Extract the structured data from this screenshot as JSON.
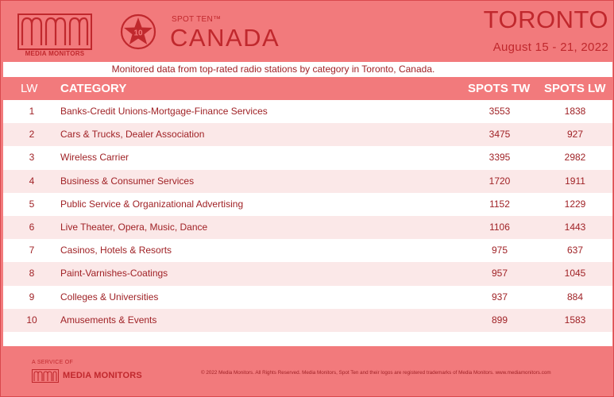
{
  "header": {
    "logo_text": "MEDIA MONITORS",
    "badge_number": "10",
    "brand_small": "SPOT TEN™",
    "country": "CANADA",
    "city": "TORONTO",
    "date_range": "August 15 - 21, 2022"
  },
  "subtitle": "Monitored data from top-rated radio stations by category in Toronto, Canada.",
  "table": {
    "columns": [
      "LW",
      "CATEGORY",
      "SPOTS TW",
      "SPOTS LW"
    ],
    "rows": [
      {
        "lw": "1",
        "category": "Banks-Credit Unions-Mortgage-Finance Services",
        "spots_tw": "3553",
        "spots_lw": "1838"
      },
      {
        "lw": "2",
        "category": "Cars & Trucks, Dealer Association",
        "spots_tw": "3475",
        "spots_lw": "927"
      },
      {
        "lw": "3",
        "category": "Wireless Carrier",
        "spots_tw": "3395",
        "spots_lw": "2982"
      },
      {
        "lw": "4",
        "category": "Business & Consumer Services",
        "spots_tw": "1720",
        "spots_lw": "1911"
      },
      {
        "lw": "5",
        "category": "Public Service & Organizational Advertising",
        "spots_tw": "1152",
        "spots_lw": "1229"
      },
      {
        "lw": "6",
        "category": "Live Theater, Opera, Music, Dance",
        "spots_tw": "1106",
        "spots_lw": "1443"
      },
      {
        "lw": "7",
        "category": "Casinos, Hotels & Resorts",
        "spots_tw": "975",
        "spots_lw": "637"
      },
      {
        "lw": "8",
        "category": "Paint-Varnishes-Coatings",
        "spots_tw": "957",
        "spots_lw": "1045"
      },
      {
        "lw": "9",
        "category": "Colleges & Universities",
        "spots_tw": "937",
        "spots_lw": "884"
      },
      {
        "lw": "10",
        "category": "Amusements & Events",
        "spots_tw": "899",
        "spots_lw": "1583"
      }
    ]
  },
  "footer": {
    "service_label": "A SERVICE OF",
    "logo_text": "MEDIA MONITORS",
    "copyright": "© 2022 Media Monitors. All Rights Reserved. Media Monitors, Spot Ten and their logos are registered trademarks of Media Monitors. www.mediamonitors.com"
  },
  "colors": {
    "background": "#f27a7c",
    "brand_red": "#c0282d",
    "panel": "#ffffff",
    "row_alt": "#fbe8e8"
  },
  "icons": {
    "logo": "waveform-logo-icon",
    "badge": "star-badge-icon"
  }
}
